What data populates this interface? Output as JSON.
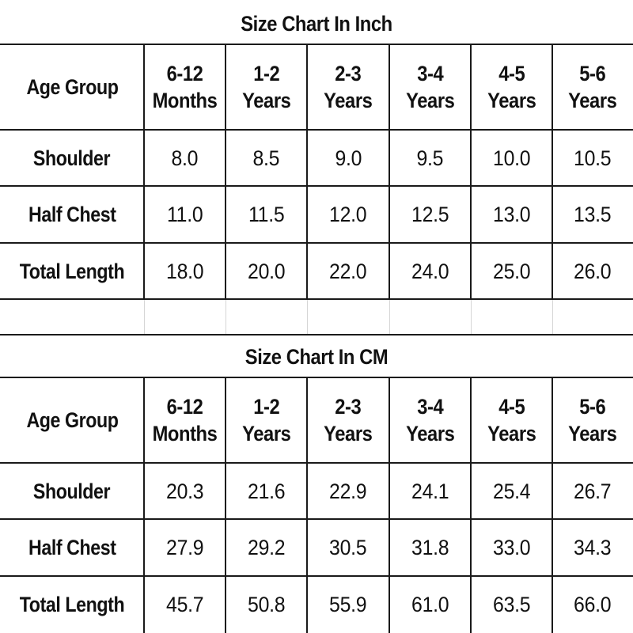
{
  "tables": [
    {
      "title": "Size Chart In Inch",
      "header_label": "Age Group",
      "columns": [
        {
          "line1": "6-12",
          "line2": "Months"
        },
        {
          "line1": "1-2",
          "line2": "Years"
        },
        {
          "line1": "2-3",
          "line2": "Years"
        },
        {
          "line1": "3-4",
          "line2": "Years"
        },
        {
          "line1": "4-5",
          "line2": "Years"
        },
        {
          "line1": "5-6",
          "line2": "Years"
        }
      ],
      "rows": [
        {
          "label": "Shoulder",
          "values": [
            "8.0",
            "8.5",
            "9.0",
            "9.5",
            "10.0",
            "10.5"
          ]
        },
        {
          "label": "Half Chest",
          "values": [
            "11.0",
            "11.5",
            "12.0",
            "12.5",
            "13.0",
            "13.5"
          ]
        },
        {
          "label": "Total Length",
          "values": [
            "18.0",
            "20.0",
            "22.0",
            "24.0",
            "25.0",
            "26.0"
          ]
        }
      ]
    },
    {
      "title": "Size Chart In CM",
      "header_label": "Age Group",
      "columns": [
        {
          "line1": "6-12",
          "line2": "Months"
        },
        {
          "line1": "1-2",
          "line2": "Years"
        },
        {
          "line1": "2-3",
          "line2": "Years"
        },
        {
          "line1": "3-4",
          "line2": "Years"
        },
        {
          "line1": "4-5",
          "line2": "Years"
        },
        {
          "line1": "5-6",
          "line2": "Years"
        }
      ],
      "rows": [
        {
          "label": "Shoulder",
          "values": [
            "20.3",
            "21.6",
            "22.9",
            "24.1",
            "25.4",
            "26.7"
          ]
        },
        {
          "label": "Half Chest",
          "values": [
            "27.9",
            "29.2",
            "30.5",
            "31.8",
            "33.0",
            "34.3"
          ]
        },
        {
          "label": "Total Length",
          "values": [
            "45.7",
            "50.8",
            "55.9",
            "61.0",
            "63.5",
            "66.0"
          ]
        }
      ]
    }
  ]
}
